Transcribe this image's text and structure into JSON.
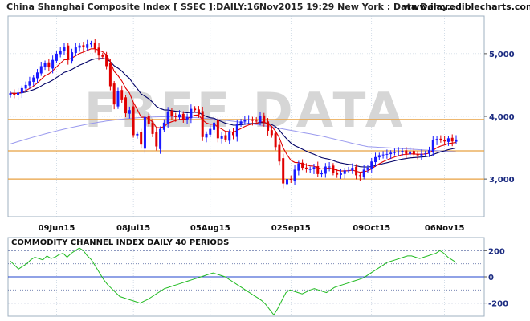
{
  "header": {
    "title": "China Shanghai Composite Index [ SSEC ]:DAILY:16Nov2015 19:29 New York : Data Delay..",
    "site": "www.incrediblecharts.com"
  },
  "watermark": "FREE DATA",
  "colors": {
    "up": "#1a1aff",
    "down": "#e00000",
    "ema_fast": "#e00000",
    "ema_slow": "#000066",
    "ma_long": "#9999ee",
    "levels": "#e8a040",
    "cci": "#22bb22",
    "grid": "#b8c8d8"
  },
  "chart_data": [
    {
      "type": "candlestick",
      "title": "China Shanghai Composite Index [ SSEC ]:DAILY:16Nov2015 19:29 New York : Data Delay..",
      "x_tick_labels": [
        "09Jun15",
        "08Jul15",
        "05Aug15",
        "02Sep15",
        "09Oct15",
        "06Nov15"
      ],
      "y_tick_labels": [
        "5,000",
        "4,000",
        "3,000"
      ],
      "y_ticks": [
        5000,
        4000,
        3000
      ],
      "ylim": [
        2400,
        5600
      ],
      "horizontal_levels": [
        3950,
        3450,
        3000
      ],
      "close": [
        4370,
        4340,
        4380,
        4450,
        4500,
        4560,
        4620,
        4700,
        4800,
        4850,
        4780,
        4900,
        5000,
        5050,
        5100,
        4900,
        5023,
        5100,
        5130,
        5100,
        5150,
        5166,
        5080,
        4970,
        4950,
        4800,
        4480,
        4190,
        4400,
        4270,
        4050,
        4100,
        3700,
        3720,
        3550,
        3990,
        3880,
        3720,
        3520,
        3800,
        3900,
        4080,
        4000,
        3990,
        4030,
        3950,
        3990,
        4120,
        4100,
        4030,
        3670,
        3720,
        3800,
        3900,
        3650,
        3690,
        3630,
        3750,
        3700,
        3880,
        3920,
        3950,
        3950,
        3930,
        3920,
        4000,
        3900,
        3770,
        3700,
        3510,
        3280,
        2930,
        3000,
        2990,
        3150,
        3250,
        3180,
        3160,
        3160,
        3190,
        3080,
        3100,
        3200,
        3200,
        3100,
        3070,
        3090,
        3140,
        3140,
        3180,
        3060,
        3050,
        3150,
        3180,
        3280,
        3350,
        3380,
        3390,
        3400,
        3420,
        3430,
        3440,
        3450,
        3400,
        3440,
        3390,
        3380,
        3400,
        3410,
        3460,
        3620,
        3640,
        3620,
        3600,
        3650,
        3600,
        3630
      ],
      "series": [
        {
          "name": "",
          "kind": "ema_fast"
        },
        {
          "name": "",
          "kind": "ema_slow"
        },
        {
          "name": "",
          "kind": "ma_long"
        }
      ]
    },
    {
      "type": "line",
      "title": "COMMODITY CHANNEL INDEX DAILY 40 PERIODS",
      "y_tick_labels": [
        "200",
        "0",
        "-200"
      ],
      "y_ticks": [
        200,
        0,
        -200
      ],
      "ylim": [
        -300,
        300
      ],
      "reference_lines": [
        200,
        100,
        0,
        -100,
        -200
      ],
      "values": [
        120,
        90,
        60,
        80,
        100,
        130,
        150,
        140,
        130,
        160,
        140,
        150,
        170,
        180,
        150,
        180,
        200,
        220,
        200,
        160,
        130,
        80,
        30,
        -20,
        -60,
        -90,
        -120,
        -150,
        -160,
        -170,
        -180,
        -190,
        -200,
        -185,
        -170,
        -150,
        -130,
        -110,
        -90,
        -80,
        -70,
        -60,
        -50,
        -40,
        -30,
        -20,
        -10,
        0,
        10,
        20,
        30,
        20,
        10,
        0,
        -20,
        -40,
        -60,
        -80,
        -100,
        -120,
        -140,
        -160,
        -180,
        -210,
        -250,
        -290,
        -240,
        -180,
        -120,
        -100,
        -110,
        -120,
        -130,
        -115,
        -100,
        -90,
        -100,
        -110,
        -120,
        -100,
        -80,
        -70,
        -60,
        -50,
        -40,
        -30,
        -20,
        -10,
        10,
        30,
        50,
        70,
        90,
        110,
        120,
        130,
        140,
        150,
        160,
        160,
        150,
        140,
        150,
        160,
        170,
        180,
        200,
        180,
        150,
        130,
        110
      ]
    }
  ]
}
